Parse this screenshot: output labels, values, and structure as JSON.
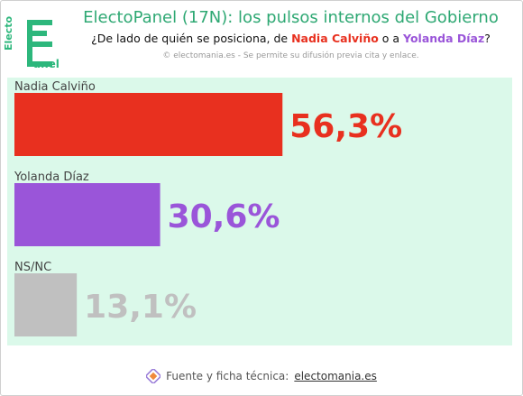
{
  "header": {
    "logo_top": "Electo",
    "logo_bottom": "anel",
    "title": "ElectoPanel (17N): los pulsos internos del Gobierno",
    "subtitle_pre": "¿De lado de quién se posiciona, de ",
    "subtitle_name1": "Nadia Calviño",
    "subtitle_mid": " o a ",
    "subtitle_name2": "Yolanda Díaz",
    "subtitle_post": "?",
    "copyright": "© electomania.es - Se permite su difusión previa cita y enlace."
  },
  "chart_data": {
    "type": "bar",
    "orientation": "horizontal",
    "categories": [
      "Nadia Calviño",
      "Yolanda Díaz",
      "NS/NC"
    ],
    "values": [
      56.3,
      30.6,
      13.1
    ],
    "value_labels": [
      "56,3%",
      "30,6%",
      "13,1%"
    ],
    "colors": [
      "#e8301f",
      "#9a55d9",
      "#c0c0c0"
    ],
    "xlim": [
      0,
      100
    ],
    "grid": false
  },
  "footer": {
    "text": "Fuente y ficha técnica: ",
    "link": "electomania.es"
  },
  "colors": {
    "brand_green": "#2ea873",
    "plot_bg": "#dbf9ea"
  }
}
